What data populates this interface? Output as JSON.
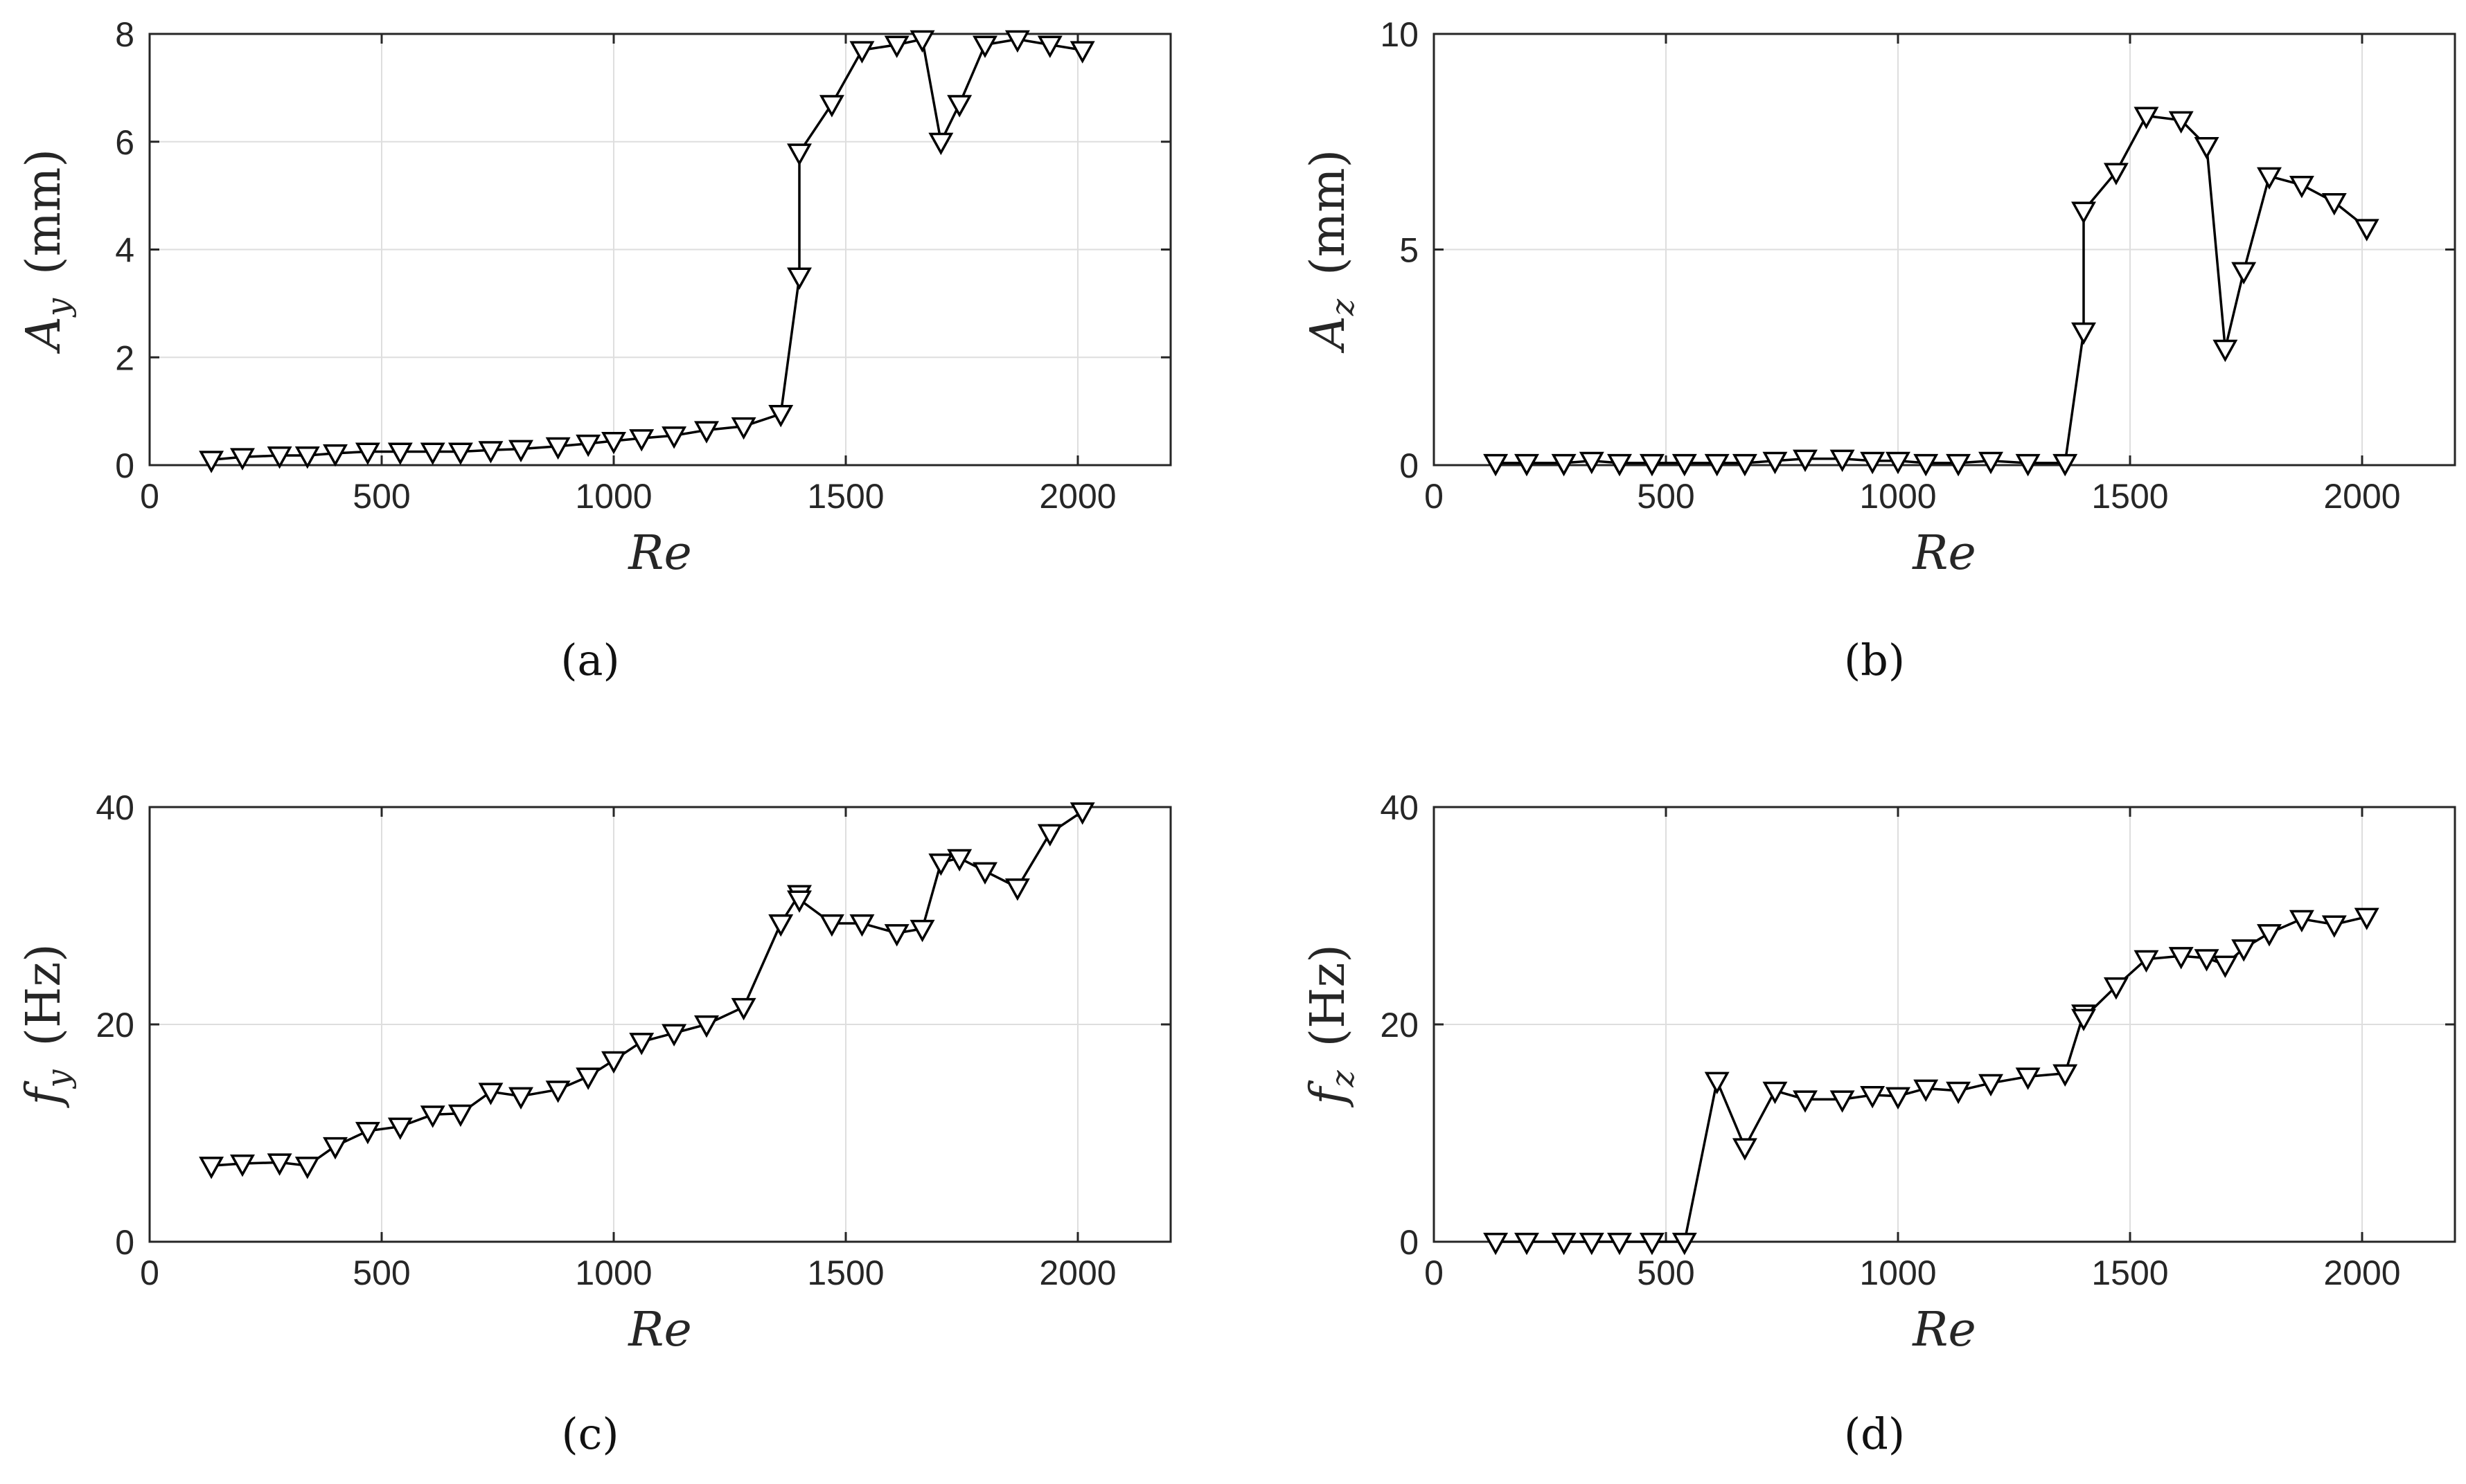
{
  "figure": {
    "panel_count": 4
  },
  "chart_data": [
    {
      "type": "line",
      "panel": "a",
      "caption": "(a)",
      "xlabel": "Re",
      "ylabel_symbol": "A",
      "ylabel_sub": "y",
      "ylabel_unit": "(mm)",
      "xlim": [
        0,
        2200
      ],
      "ylim": [
        0,
        8
      ],
      "xticks": [
        0,
        500,
        1000,
        1500,
        2000
      ],
      "yticks": [
        0,
        2,
        4,
        6,
        8
      ],
      "grid": true,
      "marker": "down-triangle",
      "x": [
        133,
        200,
        280,
        340,
        400,
        470,
        540,
        610,
        670,
        735,
        800,
        880,
        945,
        1000,
        1060,
        1130,
        1200,
        1280,
        1360,
        1400,
        1400,
        1470,
        1535,
        1610,
        1665,
        1705,
        1745,
        1800,
        1870,
        1940,
        2010
      ],
      "y": [
        0.1,
        0.15,
        0.18,
        0.18,
        0.22,
        0.25,
        0.25,
        0.25,
        0.25,
        0.28,
        0.3,
        0.35,
        0.4,
        0.45,
        0.5,
        0.55,
        0.65,
        0.72,
        0.95,
        3.5,
        5.8,
        6.7,
        7.7,
        7.8,
        7.9,
        6.0,
        6.7,
        7.8,
        7.9,
        7.8,
        7.7
      ]
    },
    {
      "type": "line",
      "panel": "b",
      "caption": "(b)",
      "xlabel": "Re",
      "ylabel_symbol": "A",
      "ylabel_sub": "z",
      "ylabel_unit": "(mm)",
      "xlim": [
        0,
        2200
      ],
      "ylim": [
        0,
        10
      ],
      "xticks": [
        0,
        500,
        1000,
        1500,
        2000
      ],
      "yticks": [
        0,
        5,
        10
      ],
      "grid": true,
      "marker": "down-triangle",
      "x": [
        133,
        200,
        280,
        340,
        400,
        470,
        540,
        610,
        670,
        735,
        800,
        880,
        945,
        1000,
        1060,
        1130,
        1200,
        1280,
        1360,
        1400,
        1400,
        1470,
        1535,
        1610,
        1665,
        1705,
        1745,
        1800,
        1870,
        1940,
        2010
      ],
      "y": [
        0.05,
        0.05,
        0.05,
        0.1,
        0.05,
        0.05,
        0.05,
        0.05,
        0.05,
        0.1,
        0.15,
        0.15,
        0.1,
        0.1,
        0.05,
        0.05,
        0.1,
        0.05,
        0.05,
        3.1,
        5.9,
        6.8,
        8.1,
        8.0,
        7.4,
        2.7,
        4.5,
        6.7,
        6.5,
        6.1,
        5.5
      ]
    },
    {
      "type": "line",
      "panel": "c",
      "caption": "(c)",
      "xlabel": "Re",
      "ylabel_symbol": "f",
      "ylabel_sub": "y",
      "ylabel_unit": "(Hz)",
      "xlim": [
        0,
        2200
      ],
      "ylim": [
        0,
        40
      ],
      "xticks": [
        0,
        500,
        1000,
        1500,
        2000
      ],
      "yticks": [
        0,
        20,
        40
      ],
      "grid": true,
      "marker": "down-triangle",
      "x": [
        133,
        200,
        280,
        340,
        400,
        470,
        540,
        610,
        670,
        735,
        800,
        880,
        945,
        1000,
        1060,
        1130,
        1200,
        1280,
        1360,
        1400,
        1400,
        1470,
        1535,
        1610,
        1665,
        1705,
        1745,
        1800,
        1870,
        1940,
        2010
      ],
      "y": [
        7.0,
        7.2,
        7.3,
        7.0,
        8.8,
        10.2,
        10.6,
        11.7,
        11.8,
        13.8,
        13.4,
        14.0,
        15.2,
        16.7,
        18.4,
        19.2,
        20.0,
        21.6,
        29.3,
        32.0,
        31.5,
        29.3,
        29.3,
        28.4,
        28.8,
        34.9,
        35.3,
        34.1,
        32.6,
        37.6,
        39.6
      ]
    },
    {
      "type": "line",
      "panel": "d",
      "caption": "(d)",
      "xlabel": "Re",
      "ylabel_symbol": "f",
      "ylabel_sub": "z",
      "ylabel_unit": "(Hz)",
      "xlim": [
        0,
        2200
      ],
      "ylim": [
        0,
        40
      ],
      "xticks": [
        0,
        500,
        1000,
        1500,
        2000
      ],
      "yticks": [
        0,
        20,
        40
      ],
      "grid": true,
      "marker": "down-triangle",
      "x": [
        133,
        200,
        280,
        340,
        400,
        470,
        540,
        610,
        670,
        735,
        800,
        880,
        945,
        1000,
        1060,
        1130,
        1200,
        1280,
        1360,
        1400,
        1400,
        1470,
        1535,
        1610,
        1665,
        1705,
        1745,
        1800,
        1870,
        1940,
        2010
      ],
      "y": [
        0,
        0,
        0,
        0,
        0,
        0,
        0,
        14.8,
        8.7,
        13.9,
        13.1,
        13.1,
        13.5,
        13.4,
        14.1,
        13.9,
        14.6,
        15.2,
        15.5,
        21.0,
        20.6,
        23.5,
        26.0,
        26.3,
        26.1,
        25.5,
        27.0,
        28.4,
        29.7,
        29.2,
        29.9
      ]
    }
  ]
}
